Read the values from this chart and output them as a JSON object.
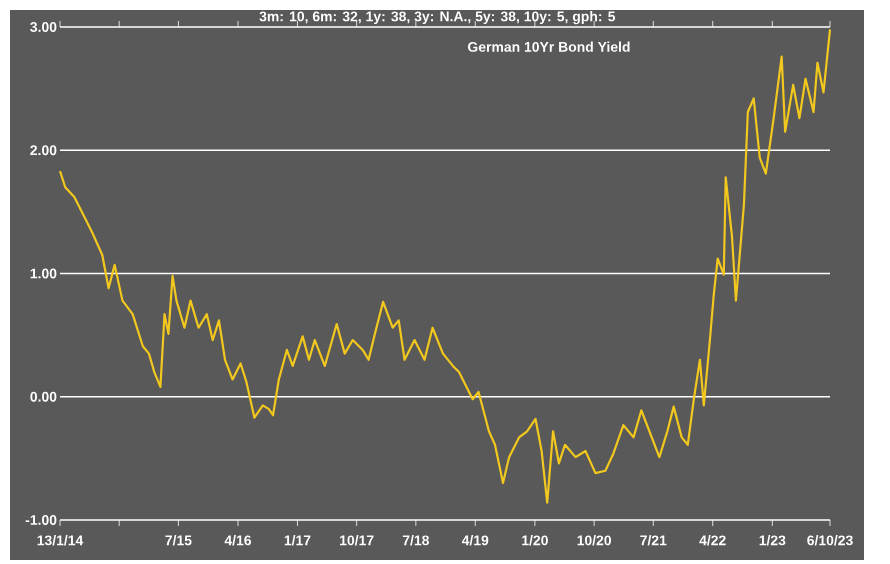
{
  "chart_data": {
    "type": "line",
    "title": "German 10Yr Bond Yield",
    "subtitle": "3m: 10,    6m: 32,    1y: 38,    3y: N.A.,    5y: 38,    10y: 5,    gph: 5",
    "x": [
      "2014-01-13",
      "2014-02-06",
      "2014-03-20",
      "2014-05-05",
      "2014-06-11",
      "2014-07-27",
      "2014-08-25",
      "2014-09-22",
      "2014-10-28",
      "2014-12-14",
      "2015-01-30",
      "2015-02-27",
      "2015-03-24",
      "2015-04-21",
      "2015-05-10",
      "2015-05-28",
      "2015-06-16",
      "2015-07-04",
      "2015-08-10",
      "2015-09-07",
      "2015-10-14",
      "2015-11-21",
      "2015-12-18",
      "2016-01-16",
      "2016-02-13",
      "2016-03-19",
      "2016-04-25",
      "2016-05-22",
      "2016-06-28",
      "2016-08-06",
      "2016-09-03",
      "2016-09-22",
      "2016-10-19",
      "2016-11-25",
      "2016-12-22",
      "2017-02-06",
      "2017-03-07",
      "2017-04-03",
      "2017-05-19",
      "2017-07-13",
      "2017-08-19",
      "2017-09-25",
      "2017-11-10",
      "2017-12-07",
      "2018-01-05",
      "2018-02-12",
      "2018-03-28",
      "2018-04-25",
      "2018-05-22",
      "2018-07-07",
      "2018-08-22",
      "2018-09-28",
      "2018-11-15",
      "2018-12-31",
      "2019-01-28",
      "2019-04-01",
      "2019-04-28",
      "2019-06-15",
      "2019-07-13",
      "2019-08-19",
      "2019-09-16",
      "2019-11-01",
      "2019-12-08",
      "2020-01-16",
      "2020-02-13",
      "2020-03-10",
      "2020-04-06",
      "2020-05-03",
      "2020-05-31",
      "2020-07-19",
      "2020-09-03",
      "2020-10-19",
      "2020-12-04",
      "2021-01-10",
      "2021-02-25",
      "2021-04-13",
      "2021-05-19",
      "2021-06-25",
      "2021-08-10",
      "2021-09-16",
      "2021-10-15",
      "2021-11-21",
      "2021-12-19",
      "2022-01-16",
      "2022-02-13",
      "2022-03-03",
      "2022-03-31",
      "2022-04-18",
      "2022-05-06",
      "2022-06-03",
      "2022-06-12",
      "2022-07-11",
      "2022-07-29",
      "2022-09-04",
      "2022-09-22",
      "2022-10-19",
      "2022-11-16",
      "2022-12-14",
      "2023-01-19",
      "2023-02-25",
      "2023-03-13",
      "2023-04-19",
      "2023-05-18",
      "2023-06-15",
      "2023-07-22",
      "2023-08-09",
      "2023-09-06",
      "2023-10-06"
    ],
    "series": [
      {
        "color": "#f2c81e",
        "values": [
          1.83,
          1.7,
          1.62,
          1.46,
          1.33,
          1.15,
          0.88,
          1.07,
          0.78,
          0.67,
          0.41,
          0.35,
          0.2,
          0.08,
          0.67,
          0.51,
          0.98,
          0.78,
          0.56,
          0.78,
          0.56,
          0.67,
          0.46,
          0.62,
          0.3,
          0.14,
          0.27,
          0.12,
          -0.17,
          -0.07,
          -0.1,
          -0.15,
          0.14,
          0.38,
          0.25,
          0.49,
          0.3,
          0.46,
          0.25,
          0.59,
          0.35,
          0.46,
          0.38,
          0.3,
          0.51,
          0.77,
          0.56,
          0.62,
          0.3,
          0.46,
          0.3,
          0.56,
          0.35,
          0.25,
          0.2,
          -0.02,
          0.04,
          -0.28,
          -0.39,
          -0.7,
          -0.49,
          -0.33,
          -0.28,
          -0.18,
          -0.44,
          -0.86,
          -0.28,
          -0.54,
          -0.39,
          -0.49,
          -0.44,
          -0.62,
          -0.6,
          -0.46,
          -0.23,
          -0.33,
          -0.11,
          -0.28,
          -0.49,
          -0.28,
          -0.08,
          -0.33,
          -0.39,
          -0.02,
          0.3,
          -0.07,
          0.46,
          0.83,
          1.12,
          0.99,
          1.78,
          1.3,
          0.78,
          1.56,
          2.31,
          2.42,
          1.94,
          1.81,
          2.26,
          2.76,
          2.15,
          2.53,
          2.26,
          2.58,
          2.31,
          2.71,
          2.47,
          2.98
        ]
      }
    ],
    "xlim": [
      "2014-01-13",
      "2023-10-06"
    ],
    "xticks": [
      {
        "value": "2014-01-13",
        "label": "13/1/14"
      },
      {
        "value": "2014-10-13",
        "label": null
      },
      {
        "value": "2015-07-13",
        "label": "7/15"
      },
      {
        "value": "2016-04-13",
        "label": "4/16"
      },
      {
        "value": "2017-01-13",
        "label": "1/17"
      },
      {
        "value": "2017-10-13",
        "label": "10/17"
      },
      {
        "value": "2018-07-13",
        "label": "7/18"
      },
      {
        "value": "2019-04-13",
        "label": "4/19"
      },
      {
        "value": "2020-01-13",
        "label": "1/20"
      },
      {
        "value": "2020-10-13",
        "label": "10/20"
      },
      {
        "value": "2021-07-13",
        "label": "7/21"
      },
      {
        "value": "2022-04-13",
        "label": "4/22"
      },
      {
        "value": "2023-01-13",
        "label": "1/23"
      },
      {
        "value": "2023-10-06",
        "label": "6/10/23"
      }
    ],
    "ylim": [
      -1,
      3
    ],
    "yticks": [
      {
        "value": -1,
        "label": "-1.00"
      },
      {
        "value": 0,
        "label": "0.00"
      },
      {
        "value": 1,
        "label": "1.00"
      },
      {
        "value": 2,
        "label": "2.00"
      },
      {
        "value": 3,
        "label": "3.00"
      }
    ],
    "grid": "y"
  }
}
